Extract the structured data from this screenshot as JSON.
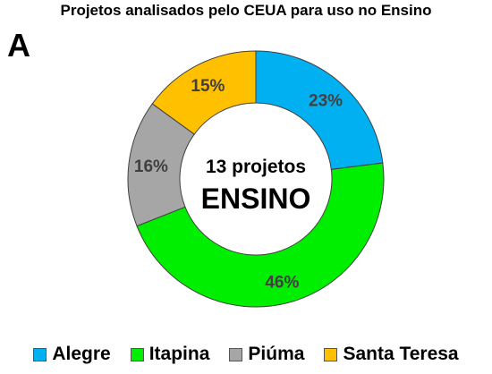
{
  "figure": {
    "title": "Projetos analisados pelo CEUA para uso no Ensino",
    "panel_letter": "A"
  },
  "chart_data": {
    "type": "pie",
    "subtype": "donut",
    "title": "Projetos analisados pelo CEUA para uso no Ensino",
    "center_text": {
      "line1": "13 projetos",
      "line2": "ENSINO"
    },
    "categories": [
      "Alegre",
      "Itapina",
      "Piúma",
      "Santa Teresa"
    ],
    "values": [
      23,
      46,
      16,
      15
    ],
    "labels": [
      "23%",
      "46%",
      "16%",
      "15%"
    ],
    "colors": [
      "#00b0f0",
      "#00ee00",
      "#a6a6a6",
      "#ffc000"
    ],
    "start_angle_deg": 0,
    "direction": "clockwise",
    "legend_position": "bottom"
  }
}
